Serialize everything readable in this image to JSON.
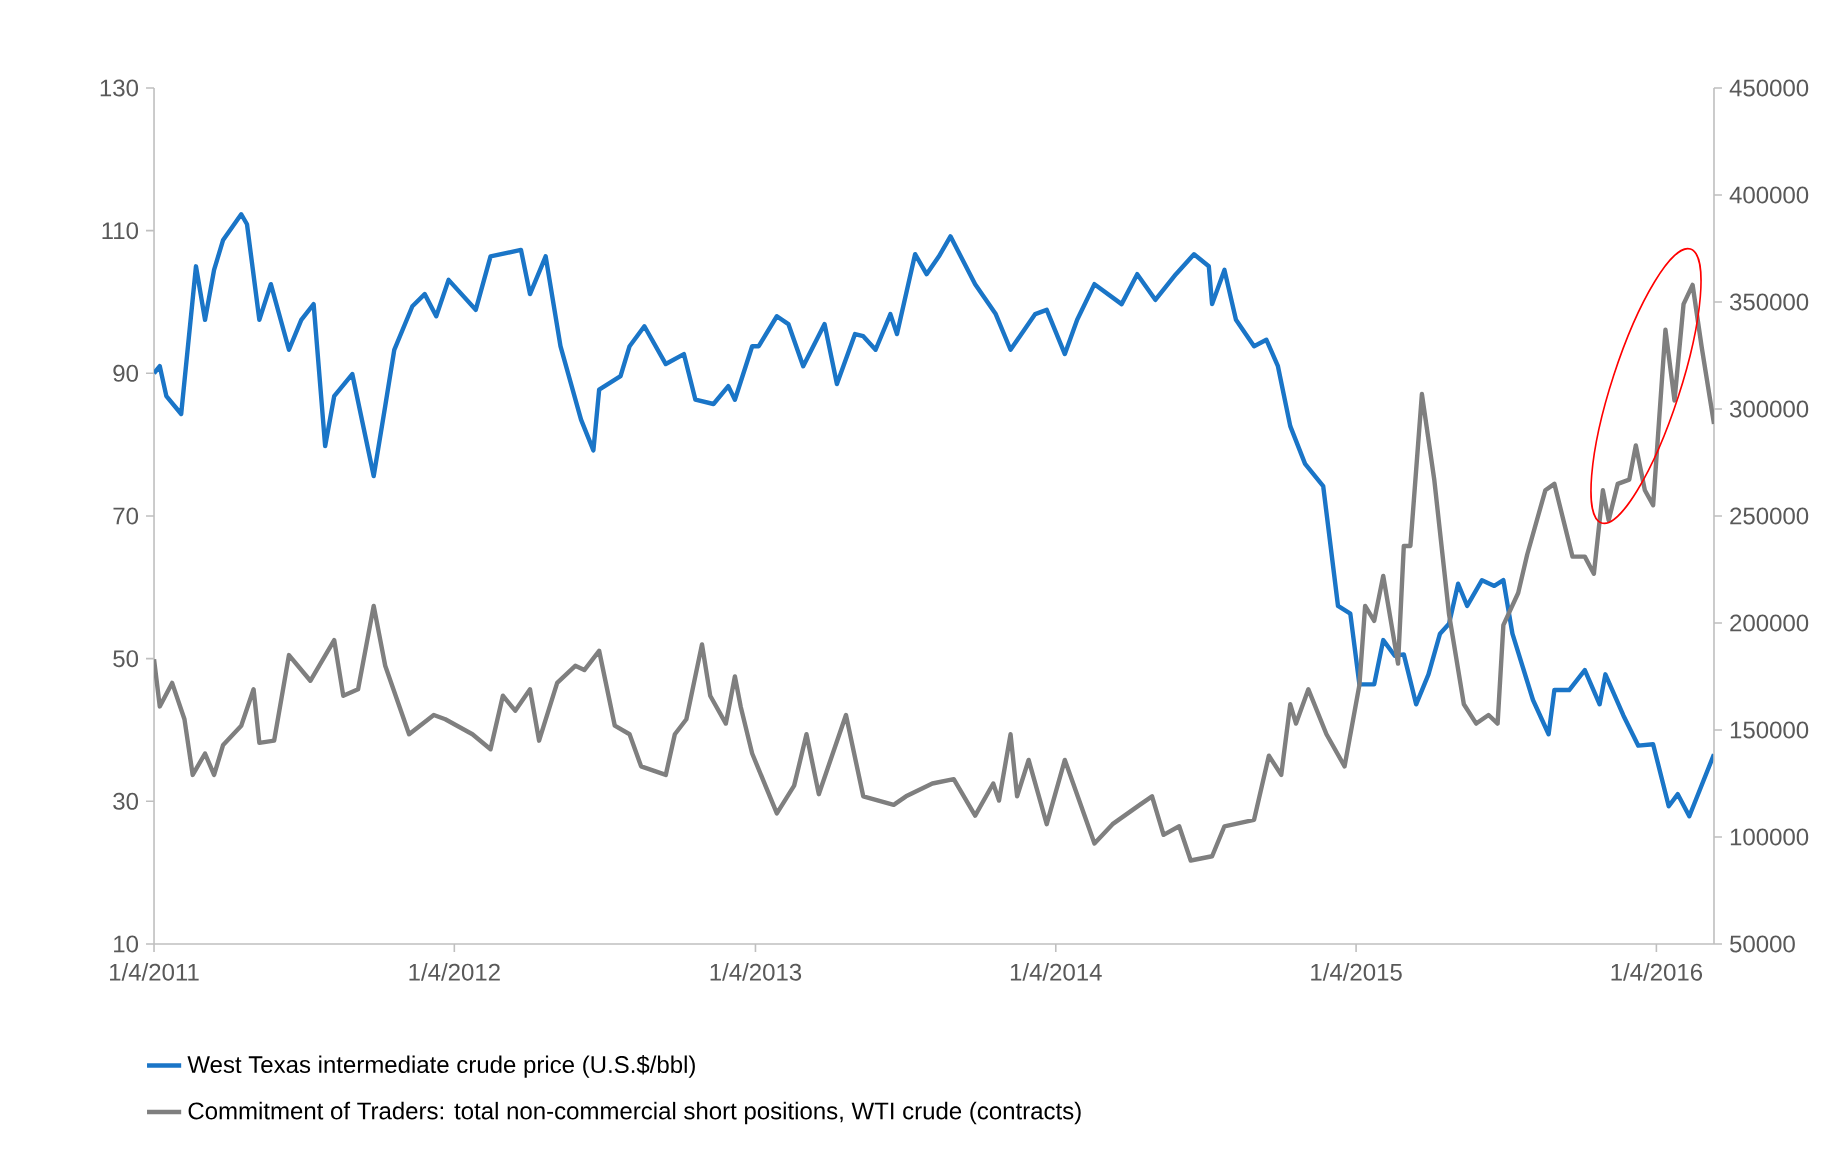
{
  "chart_data": {
    "type": "line",
    "xlim": [
      "2011-01-04",
      "2016-03-14"
    ],
    "xticks": [
      {
        "value": "2011-01-04",
        "label": "1/4/2011"
      },
      {
        "value": "2012-01-04",
        "label": "1/4/2012"
      },
      {
        "value": "2013-01-04",
        "label": "1/4/2013"
      },
      {
        "value": "2014-01-04",
        "label": "1/4/2014"
      },
      {
        "value": "2015-01-04",
        "label": "1/4/2015"
      },
      {
        "value": "2016-01-04",
        "label": "1/4/2016"
      }
    ],
    "ylim": [
      10,
      130
    ],
    "yticks": [
      10,
      30,
      50,
      70,
      90,
      110,
      130
    ],
    "y2lim": [
      50000,
      450000
    ],
    "y2ticks": [
      50000,
      100000,
      150000,
      200000,
      250000,
      300000,
      350000,
      400000,
      450000
    ],
    "legend": "bottom",
    "line_style": "solid",
    "marker": "none",
    "series": [
      {
        "name": "West Texas intermediate crude price (U.S.$/bbl)",
        "color": "#1a75c7",
        "x": [
          "2011-01-04",
          "2011-01-11",
          "2011-01-19",
          "2011-02-06",
          "2011-02-24",
          "2011-03-07",
          "2011-03-18",
          "2011-03-29",
          "2011-04-20",
          "2011-04-27",
          "2011-05-12",
          "2011-05-26",
          "2011-06-17",
          "2011-07-02",
          "2011-07-17",
          "2011-07-31",
          "2011-08-11",
          "2011-09-02",
          "2011-09-28",
          "2011-10-12",
          "2011-10-23",
          "2011-11-14",
          "2011-11-29",
          "2011-12-13",
          "2011-12-28",
          "2012-01-30",
          "2012-02-17",
          "2012-03-25",
          "2012-04-05",
          "2012-04-24",
          "2012-05-12",
          "2012-06-06",
          "2012-06-21",
          "2012-06-28",
          "2012-07-24",
          "2012-08-04",
          "2012-08-22",
          "2012-09-17",
          "2012-10-09",
          "2012-10-23",
          "2012-11-14",
          "2012-12-02",
          "2012-12-10",
          "2012-12-31",
          "2013-01-08",
          "2013-01-30",
          "2013-02-13",
          "2013-03-03",
          "2013-03-29",
          "2013-04-13",
          "2013-05-05",
          "2013-05-15",
          "2013-05-30",
          "2013-06-17",
          "2013-06-25",
          "2013-07-17",
          "2013-07-31",
          "2013-08-15",
          "2013-08-29",
          "2013-09-28",
          "2013-10-23",
          "2013-11-10",
          "2013-12-10",
          "2013-12-24",
          "2014-01-15",
          "2014-01-30",
          "2014-02-20",
          "2014-03-25",
          "2014-04-13",
          "2014-05-05",
          "2014-05-30",
          "2014-06-21",
          "2014-07-09",
          "2014-07-13",
          "2014-07-28",
          "2014-08-11",
          "2014-09-02",
          "2014-09-17",
          "2014-10-01",
          "2014-10-16",
          "2014-11-03",
          "2014-11-25",
          "2014-12-13",
          "2014-12-28",
          "2015-01-08",
          "2015-01-26",
          "2015-02-06",
          "2015-02-20",
          "2015-03-03",
          "2015-03-18",
          "2015-04-02",
          "2015-04-16",
          "2015-04-27",
          "2015-05-08",
          "2015-05-19",
          "2015-06-06",
          "2015-06-21",
          "2015-07-02",
          "2015-07-13",
          "2015-08-07",
          "2015-08-26",
          "2015-09-02",
          "2015-09-20",
          "2015-10-09",
          "2015-10-27",
          "2015-11-03",
          "2015-11-25",
          "2015-12-13",
          "2015-12-31",
          "2016-01-19",
          "2016-01-30",
          "2016-02-13",
          "2016-03-14"
        ],
        "values": [
          90,
          91,
          86.8,
          84.3,
          105,
          97.5,
          104.5,
          108.7,
          112.3,
          110.9,
          97.5,
          102.5,
          93.3,
          97.5,
          99.7,
          79.8,
          86.8,
          89.9,
          75.6,
          85.4,
          93.3,
          99.4,
          101.1,
          98,
          103.1,
          98.9,
          106.4,
          107.3,
          101.1,
          106.4,
          93.8,
          83.5,
          79.2,
          87.7,
          89.6,
          93.8,
          96.6,
          91.3,
          92.7,
          86.3,
          85.7,
          88.2,
          86.3,
          93.8,
          93.8,
          98,
          96.9,
          91,
          96.9,
          88.5,
          95.5,
          95.2,
          93.3,
          98.3,
          95.5,
          106.7,
          103.9,
          106.4,
          109.2,
          102.5,
          98.3,
          93.3,
          98.3,
          98.9,
          92.7,
          97.5,
          102.5,
          99.7,
          103.9,
          100.3,
          103.9,
          106.7,
          105,
          99.7,
          104.5,
          97.5,
          93.8,
          94.7,
          91,
          82.6,
          77.3,
          74.2,
          57.4,
          56.3,
          46.4,
          46.4,
          52.6,
          50.4,
          50.6,
          43.6,
          47.8,
          53.5,
          54.9,
          60.5,
          57.4,
          61,
          60.2,
          61,
          53.5,
          44.2,
          39.4,
          45.6,
          45.6,
          48.4,
          43.6,
          47.8,
          42,
          37.8,
          38,
          29.3,
          31,
          27.9,
          36.6
        ]
      },
      {
        "name": "Commitment of Traders: total non-commercial short positions, WTI crude (contracts)",
        "color": "#7f7f7f",
        "axis": "y2",
        "x": [
          "2011-01-04",
          "2011-01-11",
          "2011-01-26",
          "2011-02-10",
          "2011-02-20",
          "2011-03-07",
          "2011-03-18",
          "2011-03-29",
          "2011-04-20",
          "2011-05-05",
          "2011-05-12",
          "2011-05-30",
          "2011-06-17",
          "2011-07-13",
          "2011-08-11",
          "2011-08-22",
          "2011-09-09",
          "2011-09-28",
          "2011-10-12",
          "2011-11-10",
          "2011-12-10",
          "2011-12-24",
          "2012-01-26",
          "2012-02-17",
          "2012-03-03",
          "2012-03-18",
          "2012-04-05",
          "2012-04-16",
          "2012-05-08",
          "2012-05-30",
          "2012-06-10",
          "2012-06-28",
          "2012-07-17",
          "2012-08-04",
          "2012-08-18",
          "2012-09-17",
          "2012-09-28",
          "2012-10-12",
          "2012-10-31",
          "2012-11-10",
          "2012-11-29",
          "2012-12-10",
          "2012-12-17",
          "2012-12-31",
          "2013-01-30",
          "2013-02-20",
          "2013-03-07",
          "2013-03-22",
          "2013-04-24",
          "2013-05-15",
          "2013-06-21",
          "2013-07-06",
          "2013-08-07",
          "2013-09-02",
          "2013-09-28",
          "2013-10-20",
          "2013-10-27",
          "2013-11-10",
          "2013-11-18",
          "2013-12-02",
          "2013-12-24",
          "2014-01-15",
          "2014-02-20",
          "2014-03-14",
          "2014-04-16",
          "2014-05-01",
          "2014-05-15",
          "2014-06-03",
          "2014-06-17",
          "2014-07-13",
          "2014-07-28",
          "2014-09-02",
          "2014-09-20",
          "2014-10-05",
          "2014-10-16",
          "2014-10-23",
          "2014-11-07",
          "2014-11-29",
          "2014-12-21",
          "2015-01-08",
          "2015-01-15",
          "2015-01-26",
          "2015-02-06",
          "2015-02-24",
          "2015-03-03",
          "2015-03-11",
          "2015-03-25",
          "2015-04-09",
          "2015-04-27",
          "2015-05-15",
          "2015-05-30",
          "2015-06-14",
          "2015-06-25",
          "2015-07-02",
          "2015-07-20",
          "2015-07-31",
          "2015-08-22",
          "2015-09-02",
          "2015-09-24",
          "2015-10-09",
          "2015-10-20",
          "2015-10-31",
          "2015-11-07",
          "2015-11-18",
          "2015-12-02",
          "2015-12-10",
          "2015-12-21",
          "2015-12-31",
          "2016-01-15",
          "2016-01-26",
          "2016-02-06",
          "2016-02-17",
          "2016-02-28",
          "2016-03-14"
        ],
        "values": [
          183000,
          161000,
          172000,
          155000,
          129000,
          139000,
          129000,
          143000,
          152000,
          169000,
          144000,
          145000,
          185000,
          173000,
          192000,
          166000,
          169000,
          208000,
          180000,
          148000,
          157000,
          155000,
          148000,
          141000,
          166000,
          159000,
          169000,
          145000,
          172000,
          180000,
          178000,
          187000,
          152000,
          148000,
          133000,
          129000,
          148000,
          155000,
          190000,
          166000,
          153000,
          175000,
          161000,
          139000,
          111000,
          124000,
          148000,
          120000,
          157000,
          119000,
          115000,
          119000,
          125000,
          127000,
          110000,
          125000,
          117000,
          148000,
          119000,
          136000,
          106000,
          136000,
          97000,
          106000,
          115000,
          119000,
          101000,
          105000,
          89000,
          91000,
          105000,
          108000,
          138000,
          129000,
          162000,
          153000,
          169000,
          148000,
          133000,
          171000,
          208000,
          201000,
          222000,
          181000,
          236000,
          236000,
          307000,
          267000,
          204000,
          162000,
          153000,
          157000,
          153000,
          199000,
          214000,
          232000,
          262000,
          265000,
          231000,
          231000,
          223000,
          262000,
          248000,
          265000,
          267000,
          283000,
          262000,
          255000,
          337000,
          304000,
          349000,
          358000,
          329000,
          293000
        ]
      }
    ]
  }
}
